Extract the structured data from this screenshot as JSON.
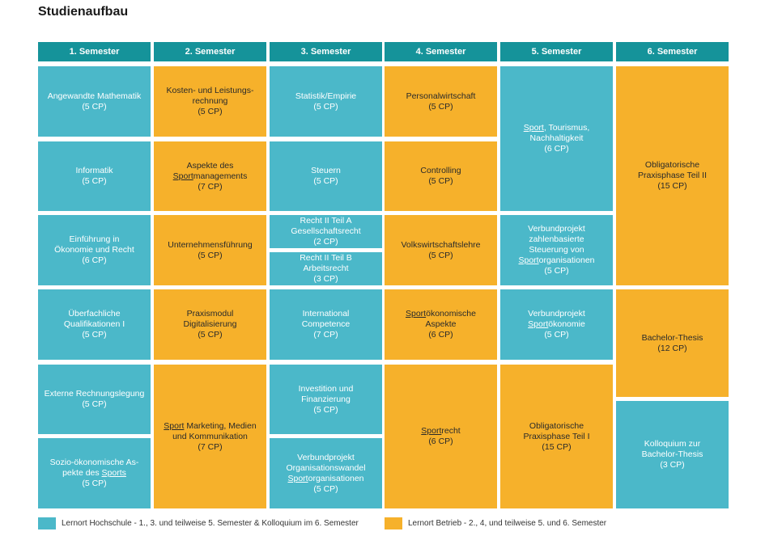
{
  "title": "Studienaufbau",
  "colors": {
    "hochschule": "#4bb8c9",
    "betrieb": "#f6b12b",
    "header": "#15939a"
  },
  "semesters": [
    {
      "label": "1. Semester",
      "modules": [
        {
          "color": "teal",
          "lines": [
            [
              {
                "t": "Angewandte Mathematik"
              }
            ],
            [
              {
                "t": "(5 CP)"
              }
            ]
          ]
        },
        {
          "color": "teal",
          "lines": [
            [
              {
                "t": "Informatik"
              }
            ],
            [
              {
                "t": "(5 CP)"
              }
            ]
          ]
        },
        {
          "color": "teal",
          "lines": [
            [
              {
                "t": "Einführung in"
              }
            ],
            [
              {
                "t": "Ökonomie und Recht"
              }
            ],
            [
              {
                "t": "(6 CP)"
              }
            ]
          ]
        },
        {
          "color": "teal",
          "lines": [
            [
              {
                "t": "Überfachliche"
              }
            ],
            [
              {
                "t": "Qualifikationen I"
              }
            ],
            [
              {
                "t": "(5 CP)"
              }
            ]
          ]
        },
        {
          "color": "teal",
          "lines": [
            [
              {
                "t": "Externe Rechnungslegung"
              }
            ],
            [
              {
                "t": "(5 CP)"
              }
            ]
          ]
        },
        {
          "color": "teal",
          "lines": [
            [
              {
                "t": "Sozio-ökonomische As-"
              }
            ],
            [
              {
                "t": "pekte des "
              },
              {
                "t": "Sports",
                "u": true
              }
            ],
            [
              {
                "t": "(5 CP)"
              }
            ]
          ]
        }
      ]
    },
    {
      "label": "2. Semester",
      "modules": [
        {
          "color": "orange",
          "lines": [
            [
              {
                "t": "Kosten- und Leistungs-"
              }
            ],
            [
              {
                "t": "rechnung"
              }
            ],
            [
              {
                "t": "(5 CP)"
              }
            ]
          ]
        },
        {
          "color": "orange",
          "lines": [
            [
              {
                "t": "Aspekte des"
              }
            ],
            [
              {
                "t": "Sport",
                "u": true
              },
              {
                "t": "managements"
              }
            ],
            [
              {
                "t": "(7 CP)"
              }
            ]
          ]
        },
        {
          "color": "orange",
          "lines": [
            [
              {
                "t": "Unternehmensführung"
              }
            ],
            [
              {
                "t": "(5 CP)"
              }
            ]
          ]
        },
        {
          "color": "orange",
          "lines": [
            [
              {
                "t": "Praxismodul"
              }
            ],
            [
              {
                "t": "Digitalisierung"
              }
            ],
            [
              {
                "t": "(5 CP)"
              }
            ]
          ]
        },
        {
          "color": "orange",
          "lines": [
            [
              {
                "t": "Sport",
                "u": true
              },
              {
                "t": " Marketing, Medien"
              }
            ],
            [
              {
                "t": "und Kommunikation"
              }
            ],
            [
              {
                "t": "(7 CP)"
              }
            ]
          ]
        }
      ]
    },
    {
      "label": "3. Semester",
      "modules": [
        {
          "color": "teal",
          "lines": [
            [
              {
                "t": "Statistik/Empirie"
              }
            ],
            [
              {
                "t": "(5 CP)"
              }
            ]
          ]
        },
        {
          "color": "teal",
          "lines": [
            [
              {
                "t": "Steuern"
              }
            ],
            [
              {
                "t": "(5 CP)"
              }
            ]
          ]
        },
        {
          "color": "teal",
          "lines": [
            [
              {
                "t": "Recht II Teil A"
              }
            ],
            [
              {
                "t": "Gesellschaftsrecht"
              }
            ],
            [
              {
                "t": "(2 CP)"
              }
            ]
          ]
        },
        {
          "color": "teal",
          "lines": [
            [
              {
                "t": "Recht II Teil B"
              }
            ],
            [
              {
                "t": "Arbeitsrecht"
              }
            ],
            [
              {
                "t": "(3 CP)"
              }
            ]
          ]
        },
        {
          "color": "teal",
          "lines": [
            [
              {
                "t": "International"
              }
            ],
            [
              {
                "t": "Competence"
              }
            ],
            [
              {
                "t": "(7 CP)"
              }
            ]
          ]
        },
        {
          "color": "teal",
          "lines": [
            [
              {
                "t": "Investition und"
              }
            ],
            [
              {
                "t": "Finanzierung"
              }
            ],
            [
              {
                "t": "(5 CP)"
              }
            ]
          ]
        },
        {
          "color": "teal",
          "lines": [
            [
              {
                "t": "Verbundprojekt"
              }
            ],
            [
              {
                "t": "Organisationswandel"
              }
            ],
            [
              {
                "t": "Sport",
                "u": true
              },
              {
                "t": "organisationen"
              }
            ],
            [
              {
                "t": "(5 CP)"
              }
            ]
          ]
        }
      ]
    },
    {
      "label": "4. Semester",
      "modules": [
        {
          "color": "orange",
          "lines": [
            [
              {
                "t": "Personalwirtschaft"
              }
            ],
            [
              {
                "t": "(5 CP)"
              }
            ]
          ]
        },
        {
          "color": "orange",
          "lines": [
            [
              {
                "t": "Controlling"
              }
            ],
            [
              {
                "t": "(5 CP)"
              }
            ]
          ]
        },
        {
          "color": "orange",
          "lines": [
            [
              {
                "t": "Volkswirtschaftslehre"
              }
            ],
            [
              {
                "t": "(5 CP)"
              }
            ]
          ]
        },
        {
          "color": "orange",
          "lines": [
            [
              {
                "t": "Sport",
                "u": true
              },
              {
                "t": "ökonomische"
              }
            ],
            [
              {
                "t": "Aspekte"
              }
            ],
            [
              {
                "t": "(6 CP)"
              }
            ]
          ]
        },
        {
          "color": "orange",
          "lines": [
            [
              {
                "t": "Sport",
                "u": true
              },
              {
                "t": "recht"
              }
            ],
            [
              {
                "t": "(6 CP)"
              }
            ]
          ]
        }
      ]
    },
    {
      "label": "5. Semester",
      "modules": [
        {
          "color": "teal",
          "lines": [
            [
              {
                "t": "Sport",
                "u": true
              },
              {
                "t": ", Tourismus,"
              }
            ],
            [
              {
                "t": "Nachhaltigkeit"
              }
            ],
            [
              {
                "t": "(6 CP)"
              }
            ]
          ]
        },
        {
          "color": "teal",
          "lines": [
            [
              {
                "t": "Verbundprojekt"
              }
            ],
            [
              {
                "t": "zahlenbasierte"
              }
            ],
            [
              {
                "t": "Steuerung von"
              }
            ],
            [
              {
                "t": "Sport",
                "u": true
              },
              {
                "t": "organisationen"
              }
            ],
            [
              {
                "t": "(5 CP)"
              }
            ]
          ]
        },
        {
          "color": "teal",
          "lines": [
            [
              {
                "t": "Verbundprojekt"
              }
            ],
            [
              {
                "t": "Sport",
                "u": true
              },
              {
                "t": "ökonomie"
              }
            ],
            [
              {
                "t": "(5 CP)"
              }
            ]
          ]
        },
        {
          "color": "orange",
          "lines": [
            [
              {
                "t": "Obligatorische"
              }
            ],
            [
              {
                "t": "Praxisphase Teil I"
              }
            ],
            [
              {
                "t": "(15 CP)"
              }
            ]
          ]
        }
      ]
    },
    {
      "label": "6. Semester",
      "modules": [
        {
          "color": "orange",
          "lines": [
            [
              {
                "t": "Obligatorische"
              }
            ],
            [
              {
                "t": "Praxisphase Teil II"
              }
            ],
            [
              {
                "t": "(15 CP)"
              }
            ]
          ]
        },
        {
          "color": "orange",
          "lines": [
            [
              {
                "t": "Bachelor-Thesis"
              }
            ],
            [
              {
                "t": "(12 CP)"
              }
            ]
          ]
        },
        {
          "color": "teal",
          "lines": [
            [
              {
                "t": "Kolloquium zur"
              }
            ],
            [
              {
                "t": "Bachelor-Thesis"
              }
            ],
            [
              {
                "t": "(3 CP)"
              }
            ]
          ]
        }
      ]
    }
  ],
  "legend": {
    "hochschule": "Lernort Hochschule - 1., 3. und teilweise 5. Semester & Kolloquium im 6. Semester",
    "betrieb": "Lernort Betrieb - 2., 4, und teilweise 5. und 6. Semester"
  }
}
